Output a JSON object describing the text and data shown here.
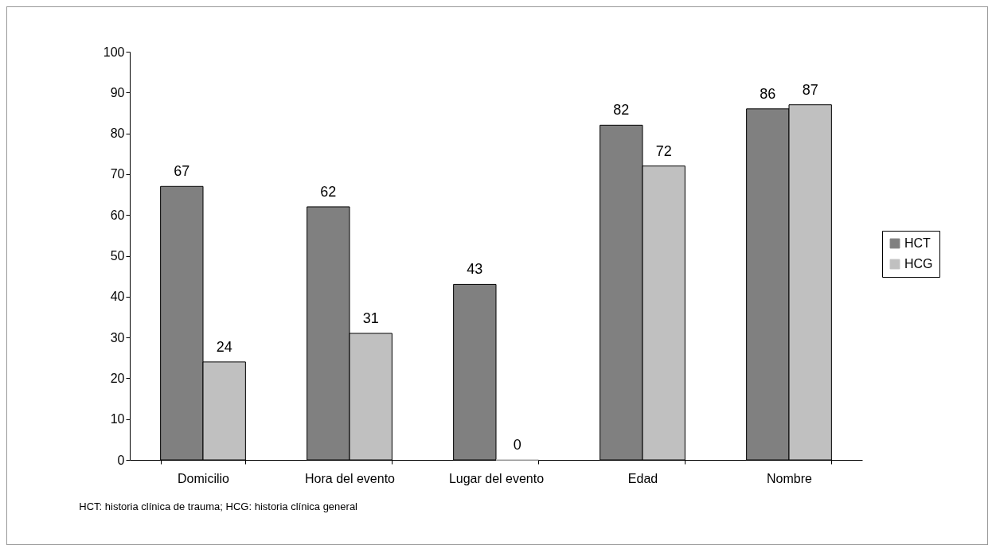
{
  "chart_data": {
    "type": "bar",
    "categories": [
      "Domicilio",
      "Hora del evento",
      "Lugar del evento",
      "Edad",
      "Nombre"
    ],
    "series": [
      {
        "name": "HCT",
        "color": "#808080",
        "values": [
          67,
          62,
          43,
          82,
          86
        ]
      },
      {
        "name": "HCG",
        "color": "#c0c0c0",
        "values": [
          24,
          31,
          0,
          72,
          87
        ]
      }
    ],
    "ylim": [
      0,
      100
    ],
    "yticks": [
      0,
      10,
      20,
      30,
      40,
      50,
      60,
      70,
      80,
      90,
      100
    ],
    "grid": false,
    "legend": "right",
    "data_labels": true,
    "annotations": [
      "HCT: historia clínica de trauma; HCG: historia clínica general"
    ]
  }
}
